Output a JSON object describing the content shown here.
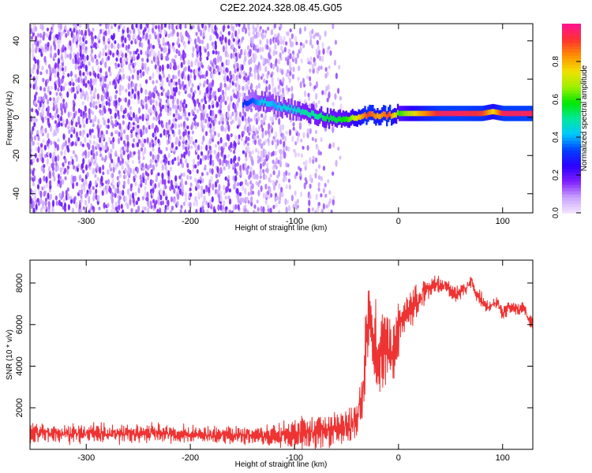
{
  "title": "C2E2.2024.328.08.45.G05",
  "chart_data": [
    {
      "type": "heatmap",
      "xlabel": "Height of straight line (km)",
      "ylabel": "Frequency (Hz)",
      "xlim": [
        -354,
        129
      ],
      "ylim": [
        -50,
        49
      ],
      "xticks": [
        -300,
        -200,
        -100,
        0,
        100
      ],
      "xtick_labels": [
        "-300",
        "-200",
        "-100",
        "0",
        "100"
      ],
      "yticks": [
        -40,
        -20,
        0,
        20,
        40
      ],
      "ytick_labels": [
        "-40",
        "-20",
        "0",
        "20",
        "40"
      ],
      "colorbar": {
        "label": "Normalized spectral amplitude",
        "range": [
          0,
          1
        ],
        "ticks": [
          0.0,
          0.2,
          0.4,
          0.6,
          0.8
        ],
        "tick_labels": [
          "0.0",
          "0.2",
          "0.4",
          "0.6",
          "0.8"
        ],
        "colormap": [
          "#f4e6ff",
          "#c9a3ff",
          "#7f1fff",
          "#2b00ff",
          "#0040ff",
          "#00c8ff",
          "#00e89a",
          "#00e800",
          "#9ef000",
          "#f0e000",
          "#ff9000",
          "#ff3030",
          "#ff1493"
        ]
      },
      "noise_region": {
        "x_from": -354,
        "x_dense_to": -150,
        "x_sparse_to": -55,
        "amplitude": [
          0.02,
          0.2
        ]
      },
      "ridge": [
        {
          "x": -150,
          "f": 7,
          "a": 0.3
        },
        {
          "x": -140,
          "f": 8,
          "a": 0.35
        },
        {
          "x": -130,
          "f": 8,
          "a": 0.45
        },
        {
          "x": -120,
          "f": 6,
          "a": 0.4
        },
        {
          "x": -110,
          "f": 5,
          "a": 0.45
        },
        {
          "x": -100,
          "f": 4,
          "a": 0.45
        },
        {
          "x": -90,
          "f": 2,
          "a": 0.5
        },
        {
          "x": -80,
          "f": 1,
          "a": 0.5
        },
        {
          "x": -70,
          "f": 0,
          "a": 0.55
        },
        {
          "x": -60,
          "f": -2,
          "a": 0.55
        },
        {
          "x": -50,
          "f": -1,
          "a": 0.6
        },
        {
          "x": -40,
          "f": 0,
          "a": 0.75
        },
        {
          "x": -30,
          "f": 1,
          "a": 0.9
        },
        {
          "x": -20,
          "f": 1,
          "a": 0.8
        },
        {
          "x": -10,
          "f": 1,
          "a": 0.9
        },
        {
          "x": 0,
          "f": 2,
          "a": 0.6
        },
        {
          "x": 20,
          "f": 2,
          "a": 0.8
        },
        {
          "x": 40,
          "f": 2,
          "a": 0.95
        },
        {
          "x": 60,
          "f": 2,
          "a": 0.95
        },
        {
          "x": 80,
          "f": 2,
          "a": 0.9
        },
        {
          "x": 90,
          "f": 3,
          "a": 0.75
        },
        {
          "x": 100,
          "f": 2,
          "a": 0.95
        },
        {
          "x": 129,
          "f": 2,
          "a": 0.95
        }
      ]
    },
    {
      "type": "line",
      "xlabel": "Height of straight line (km)",
      "ylabel": "SNR (10 * v/v)",
      "xlim": [
        -354,
        129
      ],
      "ylim": [
        0,
        9100
      ],
      "xticks": [
        -300,
        -200,
        -100,
        0,
        100
      ],
      "xtick_labels": [
        "-300",
        "-200",
        "-100",
        "0",
        "100"
      ],
      "yticks": [
        2000,
        4000,
        6000,
        8000
      ],
      "ytick_labels": [
        "2000",
        "4000",
        "6000",
        "8000"
      ],
      "color": "#ee3333",
      "series": [
        {
          "x": [
            -354,
            -340,
            -320,
            -300,
            -280,
            -260,
            -240,
            -220,
            -200,
            -180,
            -160,
            -150,
            -140,
            -130,
            -120,
            -110,
            -100,
            -90,
            -80,
            -70,
            -60,
            -50,
            -45,
            -40,
            -35,
            -32,
            -30,
            -28,
            -25,
            -22,
            -20,
            -15,
            -10,
            -5,
            0,
            5,
            10,
            15,
            20,
            25,
            30,
            35,
            40,
            45,
            50,
            55,
            60,
            65,
            70,
            75,
            80,
            85,
            90,
            95,
            100,
            105,
            110,
            115,
            120,
            125,
            129
          ],
          "y": [
            750,
            800,
            780,
            760,
            770,
            780,
            760,
            740,
            720,
            690,
            660,
            650,
            640,
            650,
            680,
            720,
            760,
            800,
            840,
            900,
            940,
            1000,
            1100,
            1300,
            2500,
            4500,
            5200,
            6200,
            4500,
            5000,
            4200,
            4800,
            5200,
            4500,
            5800,
            6200,
            6800,
            7000,
            7200,
            7600,
            7800,
            8000,
            7900,
            7900,
            7700,
            7400,
            7600,
            7800,
            8200,
            7500,
            7200,
            6800,
            6900,
            7100,
            6500,
            6800,
            6900,
            6700,
            6900,
            6300,
            5900
          ],
          "noise": [
            460,
            480,
            470,
            480,
            470,
            470,
            460,
            450,
            440,
            430,
            420,
            420,
            430,
            460,
            540,
            640,
            680,
            740,
            780,
            800,
            820,
            860,
            900,
            1000,
            1600,
            2200,
            2300,
            2300,
            2200,
            2000,
            1900,
            1800,
            1600,
            1400,
            1200,
            1000,
            900,
            800,
            700,
            600,
            450,
            400,
            380,
            360,
            360,
            360,
            360,
            360,
            360,
            360,
            340,
            340,
            340,
            340,
            320,
            320,
            320,
            320,
            320,
            320,
            320
          ]
        }
      ]
    }
  ]
}
